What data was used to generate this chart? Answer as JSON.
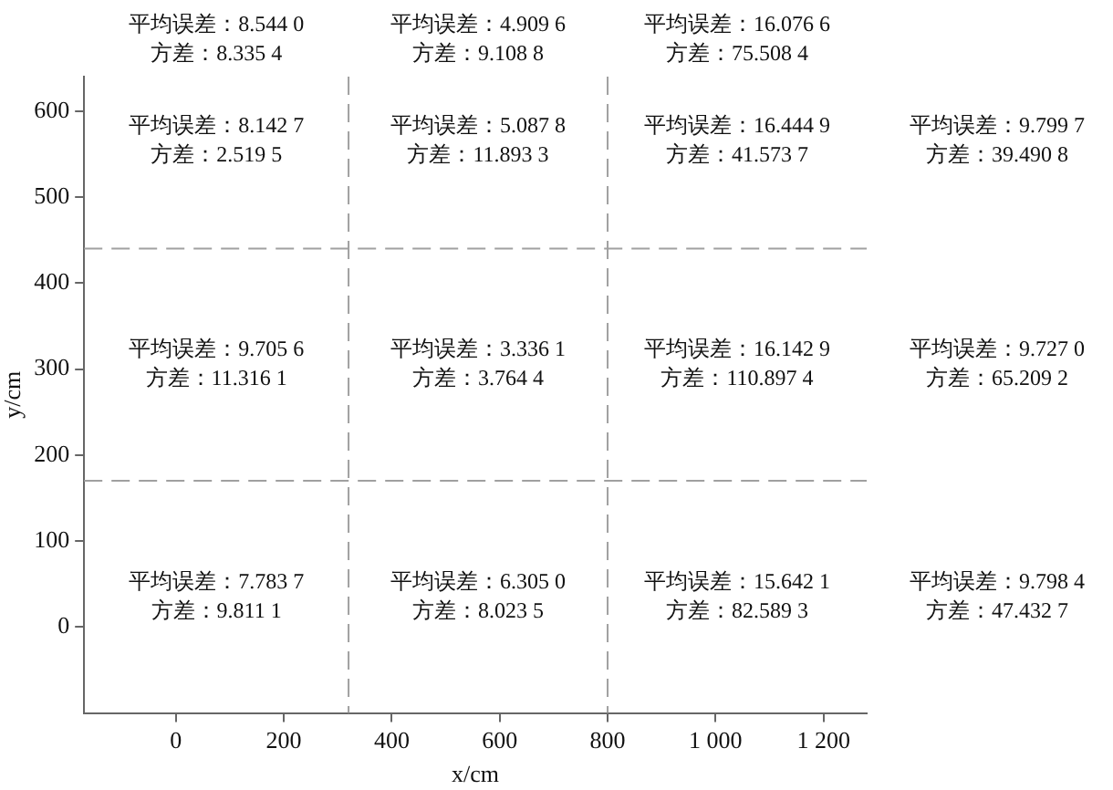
{
  "chart_data": {
    "type": "scatter",
    "xlabel": "x/cm",
    "ylabel": "y/cm",
    "xlim": [
      -170,
      1280
    ],
    "ylim": [
      -100,
      640
    ],
    "xticks": [
      0,
      200,
      400,
      600,
      800,
      {
        "value": 1000,
        "label": "1 000"
      },
      {
        "value": 1200,
        "label": "1 200"
      }
    ],
    "yticks": [
      0,
      100,
      200,
      300,
      400,
      500,
      600
    ],
    "ref_lines": [
      {
        "axis": "x",
        "value": 320,
        "color": "#a0a0a0",
        "line_style": "dashed"
      },
      {
        "axis": "x",
        "value": 800,
        "color": "#a0a0a0",
        "line_style": "dashed"
      },
      {
        "axis": "y",
        "value": 440,
        "color": "#a0a0a0",
        "line_style": "dashed"
      },
      {
        "axis": "y",
        "value": 170,
        "color": "#a0a0a0",
        "line_style": "dashed"
      }
    ],
    "annotations": [
      "平均误差：8.544 0\n方差：8.335 4",
      "平均误差：4.909 6\n方差：9.108 8",
      "平均误差：16.076 6\n方差：75.508 4",
      "平均误差：8.142 7\n方差：2.519 5",
      "平均误差：5.087 8\n方差：11.893 3",
      "平均误差：16.444 9\n方差：41.573 7",
      "平均误差：9.799 7\n方差：39.490 8",
      "平均误差：9.705 6\n方差：11.316 1",
      "平均误差：3.336 1\n方差：3.764 4",
      "平均误差：16.142 9\n方差：110.897 4",
      "平均误差：9.727 0\n方差：65.209 2",
      "平均误差：7.783 7\n方差：9.811 1",
      "平均误差：6.305 0\n方差：8.023 5",
      "平均误差：15.642 1\n方差：82.589 3",
      "平均误差：9.798 4\n方差：47.432 7"
    ]
  }
}
